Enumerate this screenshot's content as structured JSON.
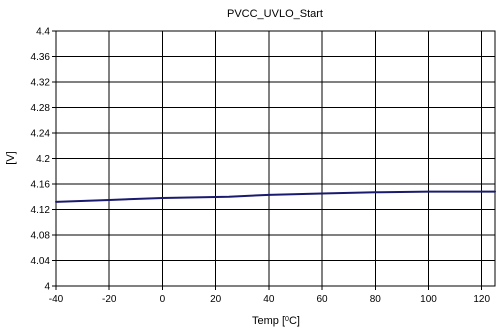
{
  "chart_data": {
    "type": "line",
    "title": "PVCC_UVLO_Start",
    "xlabel": "Temp [",
    "xlabel_sup": "0",
    "xlabel_suffix": "C]",
    "ylabel": "[V]",
    "xlim": [
      -40,
      125
    ],
    "ylim": [
      4.0,
      4.4
    ],
    "xticks": [
      "-40",
      "-20",
      "0",
      "20",
      "40",
      "60",
      "80",
      "100",
      "120"
    ],
    "yticks": [
      "4",
      "4.04",
      "4.08",
      "4.12",
      "4.16",
      "4.2",
      "4.24",
      "4.28",
      "4.32",
      "4.36",
      "4.4"
    ],
    "grid": true,
    "series": [
      {
        "color": "#1a1a6e",
        "x": [
          -40,
          -20,
          0,
          25,
          40,
          60,
          80,
          100,
          125
        ],
        "y": [
          4.132,
          4.135,
          4.138,
          4.14,
          4.143,
          4.145,
          4.147,
          4.148,
          4.148
        ]
      }
    ]
  }
}
